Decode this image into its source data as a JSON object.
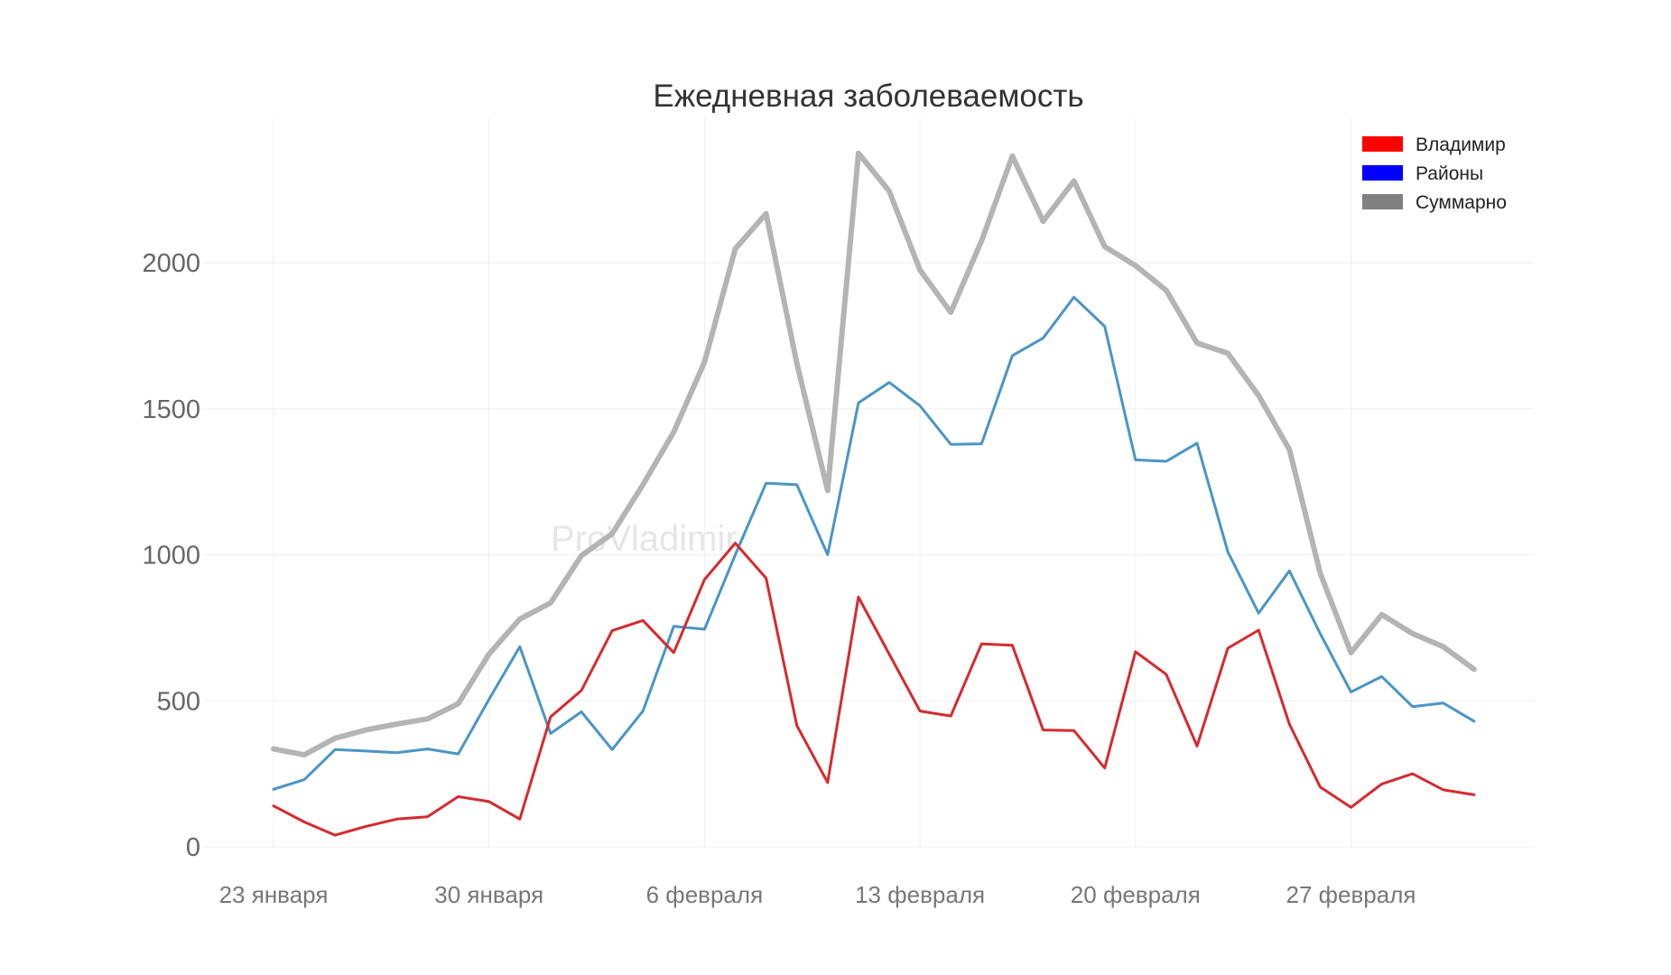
{
  "chart_data": {
    "type": "line",
    "title": "Ежедневная заболеваемость",
    "xlabel": "",
    "ylabel": "",
    "ylim": [
      0,
      2500
    ],
    "yticks": [
      0,
      500,
      1000,
      1500,
      2000
    ],
    "xtick_labels": [
      "23 января",
      "30 января",
      "6 февраля",
      "13 февраля",
      "20 февраля",
      "27 февраля"
    ],
    "xtick_day_index": [
      0,
      7,
      14,
      21,
      28,
      35
    ],
    "grid": true,
    "legend_position": "top-right",
    "watermark": "ProVladimir",
    "series": [
      {
        "name": "Владимир",
        "color": "#d62a2e",
        "legend_color": "#ff0000",
        "values": [
          140,
          85,
          40,
          70,
          95,
          103,
          172,
          155,
          95,
          445,
          535,
          740,
          775,
          665,
          915,
          1040,
          920,
          415,
          220,
          855,
          660,
          465,
          448,
          695,
          690,
          400,
          398,
          270,
          668,
          590,
          345,
          680,
          742,
          420,
          205,
          135,
          215,
          250,
          195,
          178
        ]
      },
      {
        "name": "Районы",
        "color": "#4a95c6",
        "legend_color": "#0000ff",
        "values": [
          197,
          230,
          333,
          328,
          322,
          335,
          318,
          505,
          685,
          388,
          462,
          333,
          465,
          755,
          745,
          1000,
          1245,
          1240,
          1000,
          1520,
          1590,
          1510,
          1378,
          1380,
          1682,
          1742,
          1882,
          1782,
          1325,
          1320,
          1382,
          1010,
          800,
          945,
          730,
          530,
          583,
          480,
          492,
          430
        ]
      },
      {
        "name": "Суммарно",
        "color": "#b4b4b4",
        "legend_color": "#808080",
        "values": [
          335,
          315,
          372,
          400,
          420,
          438,
          490,
          660,
          780,
          835,
          997,
          1072,
          1240,
          1420,
          1660,
          2048,
          2168,
          1655,
          1220,
          2375,
          2245,
          1975,
          1830,
          2075,
          2365,
          2142,
          2280,
          2055,
          1990,
          1905,
          1725,
          1690,
          1545,
          1360,
          937,
          665,
          795,
          730,
          685,
          608
        ]
      }
    ]
  }
}
